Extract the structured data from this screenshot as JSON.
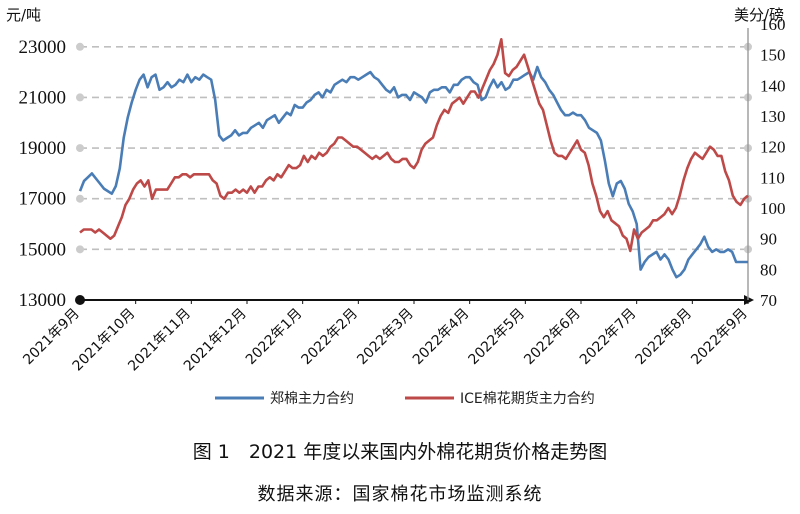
{
  "chart_data": {
    "type": "line",
    "caption": "图 1　2021 年度以来国内外棉花期货价格走势图",
    "source": "数据来源：国家棉花市场监测系统",
    "left_axis": {
      "unit": "元/吨",
      "ticks": [
        13000,
        15000,
        17000,
        19000,
        21000,
        23000
      ],
      "ylim": [
        13000,
        23900
      ]
    },
    "right_axis": {
      "unit": "美分/磅",
      "ticks": [
        70,
        80,
        90,
        100,
        110,
        120,
        130,
        140,
        150,
        160
      ],
      "ylim": [
        70,
        160
      ]
    },
    "x_ticks": [
      "2021年9月",
      "2021年10月",
      "2021年11月",
      "2021年12月",
      "2022年1月",
      "2022年2月",
      "2022年3月",
      "2022年4月",
      "2022年5月",
      "2022年6月",
      "2022年7月",
      "2022年8月",
      "2022年9月"
    ],
    "grid": "horizontal dashed",
    "legend_position": "bottom",
    "colors": {
      "zce": "#4a7db6",
      "ice": "#bd4a48"
    },
    "series": [
      {
        "name": "郑棉主力合约",
        "axis": "left",
        "values": [
          17300,
          17700,
          17850,
          18000,
          17800,
          17600,
          17400,
          17300,
          17200,
          17500,
          18200,
          19400,
          20200,
          20800,
          21300,
          21700,
          21900,
          21400,
          21800,
          21900,
          21300,
          21400,
          21600,
          21400,
          21500,
          21700,
          21600,
          21900,
          21600,
          21800,
          21700,
          21900,
          21800,
          21700,
          20900,
          19500,
          19300,
          19400,
          19500,
          19700,
          19500,
          19600,
          19600,
          19800,
          19900,
          20000,
          19800,
          20100,
          20200,
          20300,
          20000,
          20200,
          20400,
          20300,
          20700,
          20600,
          20600,
          20800,
          20900,
          21100,
          21200,
          21000,
          21300,
          21200,
          21500,
          21600,
          21700,
          21600,
          21800,
          21800,
          21700,
          21800,
          21900,
          22000,
          21800,
          21700,
          21500,
          21300,
          21200,
          21400,
          21000,
          21100,
          21100,
          20900,
          21200,
          21100,
          21000,
          20800,
          21200,
          21300,
          21300,
          21400,
          21400,
          21200,
          21500,
          21500,
          21700,
          21800,
          21800,
          21600,
          21500,
          20900,
          21000,
          21400,
          21700,
          21400,
          21600,
          21300,
          21400,
          21700,
          21700,
          21800,
          21900,
          22000,
          21700,
          22200,
          21800,
          21600,
          21300,
          21100,
          20800,
          20500,
          20300,
          20300,
          20400,
          20300,
          20300,
          20100,
          19800,
          19700,
          19600,
          19300,
          18500,
          17600,
          17100,
          17600,
          17700,
          17400,
          16800,
          16500,
          16000,
          14200,
          14500,
          14700,
          14800,
          14900,
          14600,
          14800,
          14600,
          14200,
          13900,
          14000,
          14200,
          14600,
          14800,
          15000,
          15200,
          15500,
          15100,
          14900,
          15000,
          14900,
          14900,
          15000,
          14900,
          14500,
          14500,
          14500,
          14500
        ]
      },
      {
        "name": "ICE棉花期货主力合约",
        "axis": "right",
        "values": [
          92,
          93,
          93,
          93,
          92,
          93,
          92,
          91,
          90,
          91,
          94,
          97,
          101,
          103,
          106,
          108,
          109,
          107,
          109,
          103,
          106,
          106,
          106,
          106,
          108,
          110,
          110,
          111,
          111,
          110,
          111,
          111,
          111,
          111,
          111,
          109,
          108,
          104,
          103,
          105,
          105,
          106,
          105,
          106,
          105,
          107,
          105,
          107,
          107,
          109,
          110,
          109,
          111,
          110,
          112,
          114,
          113,
          113,
          114,
          117,
          115,
          117,
          116,
          118,
          117,
          118,
          120,
          121,
          123,
          123,
          122,
          121,
          120,
          120,
          119,
          118,
          117,
          116,
          117,
          116,
          117,
          118,
          116,
          115,
          115,
          116,
          116,
          114,
          113,
          115,
          119,
          121,
          122,
          123,
          127,
          130,
          132,
          131,
          134,
          135,
          136,
          134,
          136,
          138,
          138,
          136,
          139,
          142,
          145,
          147,
          150,
          155,
          144,
          143,
          145,
          146,
          148,
          150,
          146,
          142,
          138,
          134,
          132,
          127,
          122,
          118,
          117,
          117,
          116,
          118,
          120,
          122,
          119,
          118,
          114,
          108,
          104,
          99,
          97,
          99,
          96,
          95,
          94,
          91,
          90,
          86,
          93,
          90,
          92,
          93,
          94,
          96,
          96,
          97,
          98,
          100,
          98,
          100,
          104,
          109,
          113,
          116,
          118,
          117,
          116,
          118,
          120,
          119,
          117,
          117,
          112,
          109,
          104,
          102,
          101,
          103,
          104
        ]
      }
    ]
  }
}
